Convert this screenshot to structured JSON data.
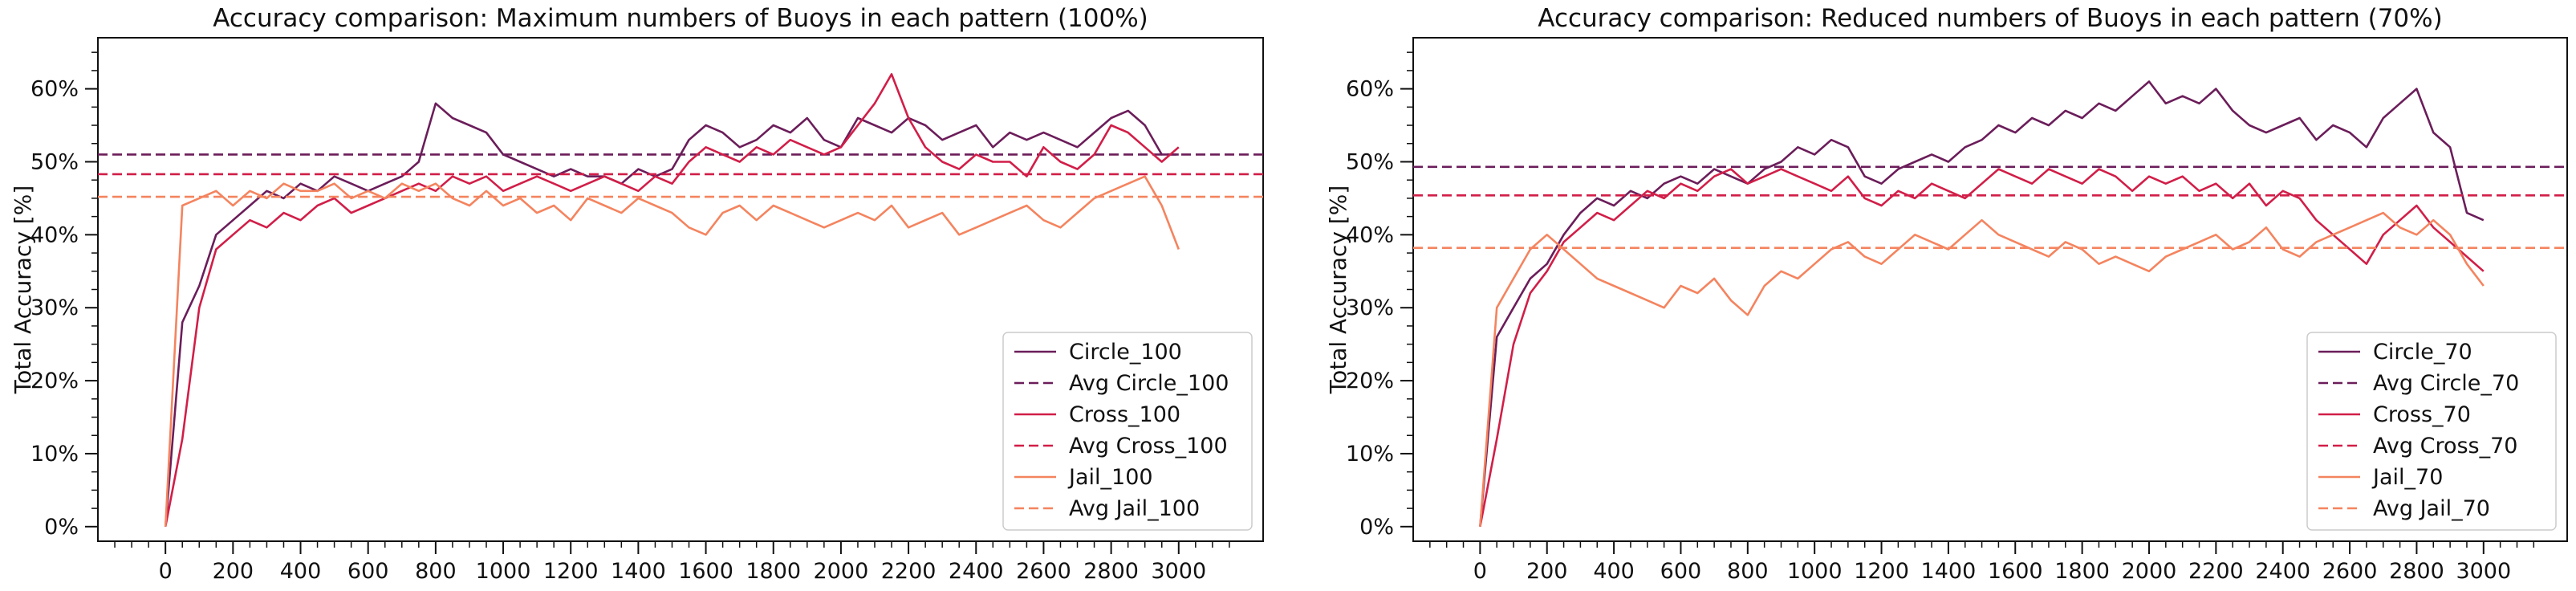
{
  "chart_data": [
    {
      "type": "line",
      "title": "Accuracy comparison: Maximum numbers of Buoys in each pattern (100%)",
      "xlabel": "",
      "ylabel": "Total Accuracy [%]",
      "xlim": [
        -200,
        3250
      ],
      "ylim": [
        -2,
        67
      ],
      "x_ticks": [
        0,
        200,
        400,
        600,
        800,
        1000,
        1200,
        1400,
        1600,
        1800,
        2000,
        2200,
        2400,
        2600,
        2800,
        3000
      ],
      "y_ticks": [
        0,
        10,
        20,
        30,
        40,
        50,
        60
      ],
      "y_tick_labels": [
        "0%",
        "10%",
        "20%",
        "30%",
        "40%",
        "50%",
        "60%"
      ],
      "legend_position": "lower-right",
      "series": [
        {
          "name": "Circle_100",
          "color": "#6b1d5a",
          "style": "solid",
          "x": [
            0,
            50,
            100,
            150,
            200,
            250,
            300,
            350,
            400,
            450,
            500,
            550,
            600,
            650,
            700,
            750,
            800,
            850,
            900,
            950,
            1000,
            1050,
            1100,
            1150,
            1200,
            1250,
            1300,
            1350,
            1400,
            1450,
            1500,
            1550,
            1600,
            1650,
            1700,
            1750,
            1800,
            1850,
            1900,
            1950,
            2000,
            2050,
            2100,
            2150,
            2200,
            2250,
            2300,
            2350,
            2400,
            2450,
            2500,
            2550,
            2600,
            2650,
            2700,
            2750,
            2800,
            2850,
            2900,
            2950,
            3000
          ],
          "y": [
            0,
            28,
            33,
            40,
            42,
            44,
            46,
            45,
            47,
            46,
            48,
            47,
            46,
            47,
            48,
            50,
            58,
            56,
            55,
            54,
            51,
            50,
            49,
            48,
            49,
            48,
            48,
            47,
            49,
            48,
            49,
            53,
            55,
            54,
            52,
            53,
            55,
            54,
            56,
            53,
            52,
            56,
            55,
            54,
            56,
            55,
            53,
            54,
            55,
            52,
            54,
            53,
            54,
            53,
            52,
            54,
            56,
            57,
            55,
            51,
            51
          ]
        },
        {
          "name": "Avg Circle_100",
          "color": "#6b1d5a",
          "style": "dashed",
          "x": [
            -200,
            3250
          ],
          "y": [
            51,
            51
          ]
        },
        {
          "name": "Cross_100",
          "color": "#d11e48",
          "style": "solid",
          "x": [
            0,
            50,
            100,
            150,
            200,
            250,
            300,
            350,
            400,
            450,
            500,
            550,
            600,
            650,
            700,
            750,
            800,
            850,
            900,
            950,
            1000,
            1050,
            1100,
            1150,
            1200,
            1250,
            1300,
            1350,
            1400,
            1450,
            1500,
            1550,
            1600,
            1650,
            1700,
            1750,
            1800,
            1850,
            1900,
            1950,
            2000,
            2050,
            2100,
            2150,
            2200,
            2250,
            2300,
            2350,
            2400,
            2450,
            2500,
            2550,
            2600,
            2650,
            2700,
            2750,
            2800,
            2850,
            2900,
            2950,
            3000
          ],
          "y": [
            0,
            12,
            30,
            38,
            40,
            42,
            41,
            43,
            42,
            44,
            45,
            43,
            44,
            45,
            46,
            47,
            46,
            48,
            47,
            48,
            46,
            47,
            48,
            47,
            46,
            47,
            48,
            47,
            46,
            48,
            47,
            50,
            52,
            51,
            50,
            52,
            51,
            53,
            52,
            51,
            52,
            55,
            58,
            62,
            56,
            52,
            50,
            49,
            51,
            50,
            50,
            48,
            52,
            50,
            49,
            51,
            55,
            54,
            52,
            50,
            52
          ]
        },
        {
          "name": "Avg Cross_100",
          "color": "#d11e48",
          "style": "dashed",
          "x": [
            -200,
            3250
          ],
          "y": [
            48.3,
            48.3
          ]
        },
        {
          "name": "Jail_100",
          "color": "#f4845f",
          "style": "solid",
          "x": [
            0,
            50,
            100,
            150,
            200,
            250,
            300,
            350,
            400,
            450,
            500,
            550,
            600,
            650,
            700,
            750,
            800,
            850,
            900,
            950,
            1000,
            1050,
            1100,
            1150,
            1200,
            1250,
            1300,
            1350,
            1400,
            1450,
            1500,
            1550,
            1600,
            1650,
            1700,
            1750,
            1800,
            1850,
            1900,
            1950,
            2000,
            2050,
            2100,
            2150,
            2200,
            2250,
            2300,
            2350,
            2400,
            2450,
            2500,
            2550,
            2600,
            2650,
            2700,
            2750,
            2800,
            2850,
            2900,
            2950,
            3000
          ],
          "y": [
            0,
            44,
            45,
            46,
            44,
            46,
            45,
            47,
            46,
            46,
            47,
            45,
            46,
            45,
            47,
            46,
            47,
            45,
            44,
            46,
            44,
            45,
            43,
            44,
            42,
            45,
            44,
            43,
            45,
            44,
            43,
            41,
            40,
            43,
            44,
            42,
            44,
            43,
            42,
            41,
            42,
            43,
            42,
            44,
            41,
            42,
            43,
            40,
            41,
            42,
            43,
            44,
            42,
            41,
            43,
            45,
            46,
            47,
            48,
            44,
            38
          ]
        },
        {
          "name": "Avg Jail_100",
          "color": "#f4845f",
          "style": "dashed",
          "x": [
            -200,
            3250
          ],
          "y": [
            45.2,
            45.2
          ]
        }
      ]
    },
    {
      "type": "line",
      "title": "Accuracy comparison: Reduced numbers of Buoys in each pattern (70%)",
      "xlabel": "",
      "ylabel": "Total Accuracy [%]",
      "xlim": [
        -200,
        3250
      ],
      "ylim": [
        -2,
        67
      ],
      "x_ticks": [
        0,
        200,
        400,
        600,
        800,
        1000,
        1200,
        1400,
        1600,
        1800,
        2000,
        2200,
        2400,
        2600,
        2800,
        3000
      ],
      "y_ticks": [
        0,
        10,
        20,
        30,
        40,
        50,
        60
      ],
      "y_tick_labels": [
        "0%",
        "10%",
        "20%",
        "30%",
        "40%",
        "50%",
        "60%"
      ],
      "legend_position": "lower-right",
      "series": [
        {
          "name": "Circle_70",
          "color": "#6b1d5a",
          "style": "solid",
          "x": [
            0,
            50,
            100,
            150,
            200,
            250,
            300,
            350,
            400,
            450,
            500,
            550,
            600,
            650,
            700,
            750,
            800,
            850,
            900,
            950,
            1000,
            1050,
            1100,
            1150,
            1200,
            1250,
            1300,
            1350,
            1400,
            1450,
            1500,
            1550,
            1600,
            1650,
            1700,
            1750,
            1800,
            1850,
            1900,
            1950,
            2000,
            2050,
            2100,
            2150,
            2200,
            2250,
            2300,
            2350,
            2400,
            2450,
            2500,
            2550,
            2600,
            2650,
            2700,
            2750,
            2800,
            2850,
            2900,
            2950,
            3000
          ],
          "y": [
            0,
            26,
            30,
            34,
            36,
            40,
            43,
            45,
            44,
            46,
            45,
            47,
            48,
            47,
            49,
            48,
            47,
            49,
            50,
            52,
            51,
            53,
            52,
            48,
            47,
            49,
            50,
            51,
            50,
            52,
            53,
            55,
            54,
            56,
            55,
            57,
            56,
            58,
            57,
            59,
            61,
            58,
            59,
            58,
            60,
            57,
            55,
            54,
            55,
            56,
            53,
            55,
            54,
            52,
            56,
            58,
            60,
            54,
            52,
            43,
            42
          ]
        },
        {
          "name": "Avg Circle_70",
          "color": "#6b1d5a",
          "style": "dashed",
          "x": [
            -200,
            3250
          ],
          "y": [
            49.3,
            49.3
          ]
        },
        {
          "name": "Cross_70",
          "color": "#d11e48",
          "style": "solid",
          "x": [
            0,
            50,
            100,
            150,
            200,
            250,
            300,
            350,
            400,
            450,
            500,
            550,
            600,
            650,
            700,
            750,
            800,
            850,
            900,
            950,
            1000,
            1050,
            1100,
            1150,
            1200,
            1250,
            1300,
            1350,
            1400,
            1450,
            1500,
            1550,
            1600,
            1650,
            1700,
            1750,
            1800,
            1850,
            1900,
            1950,
            2000,
            2050,
            2100,
            2150,
            2200,
            2250,
            2300,
            2350,
            2400,
            2450,
            2500,
            2550,
            2600,
            2650,
            2700,
            2750,
            2800,
            2850,
            2900,
            2950,
            3000
          ],
          "y": [
            0,
            12,
            25,
            32,
            35,
            39,
            41,
            43,
            42,
            44,
            46,
            45,
            47,
            46,
            48,
            49,
            47,
            48,
            49,
            48,
            47,
            46,
            48,
            45,
            44,
            46,
            45,
            47,
            46,
            45,
            47,
            49,
            48,
            47,
            49,
            48,
            47,
            49,
            48,
            46,
            48,
            47,
            48,
            46,
            47,
            45,
            47,
            44,
            46,
            45,
            42,
            40,
            38,
            36,
            40,
            42,
            44,
            41,
            39,
            37,
            35
          ]
        },
        {
          "name": "Avg Cross_70",
          "color": "#d11e48",
          "style": "dashed",
          "x": [
            -200,
            3250
          ],
          "y": [
            45.4,
            45.4
          ]
        },
        {
          "name": "Jail_70",
          "color": "#f4845f",
          "style": "solid",
          "x": [
            0,
            50,
            100,
            150,
            200,
            250,
            300,
            350,
            400,
            450,
            500,
            550,
            600,
            650,
            700,
            750,
            800,
            850,
            900,
            950,
            1000,
            1050,
            1100,
            1150,
            1200,
            1250,
            1300,
            1350,
            1400,
            1450,
            1500,
            1550,
            1600,
            1650,
            1700,
            1750,
            1800,
            1850,
            1900,
            1950,
            2000,
            2050,
            2100,
            2150,
            2200,
            2250,
            2300,
            2350,
            2400,
            2450,
            2500,
            2550,
            2600,
            2650,
            2700,
            2750,
            2800,
            2850,
            2900,
            2950,
            3000
          ],
          "y": [
            0,
            30,
            34,
            38,
            40,
            38,
            36,
            34,
            33,
            32,
            31,
            30,
            33,
            32,
            34,
            31,
            29,
            33,
            35,
            34,
            36,
            38,
            39,
            37,
            36,
            38,
            40,
            39,
            38,
            40,
            42,
            40,
            39,
            38,
            37,
            39,
            38,
            36,
            37,
            36,
            35,
            37,
            38,
            39,
            40,
            38,
            39,
            41,
            38,
            37,
            39,
            40,
            41,
            42,
            43,
            41,
            40,
            42,
            40,
            36,
            33
          ]
        },
        {
          "name": "Avg Jail_70",
          "color": "#f4845f",
          "style": "dashed",
          "x": [
            -200,
            3250
          ],
          "y": [
            38.2,
            38.2
          ]
        }
      ]
    }
  ]
}
